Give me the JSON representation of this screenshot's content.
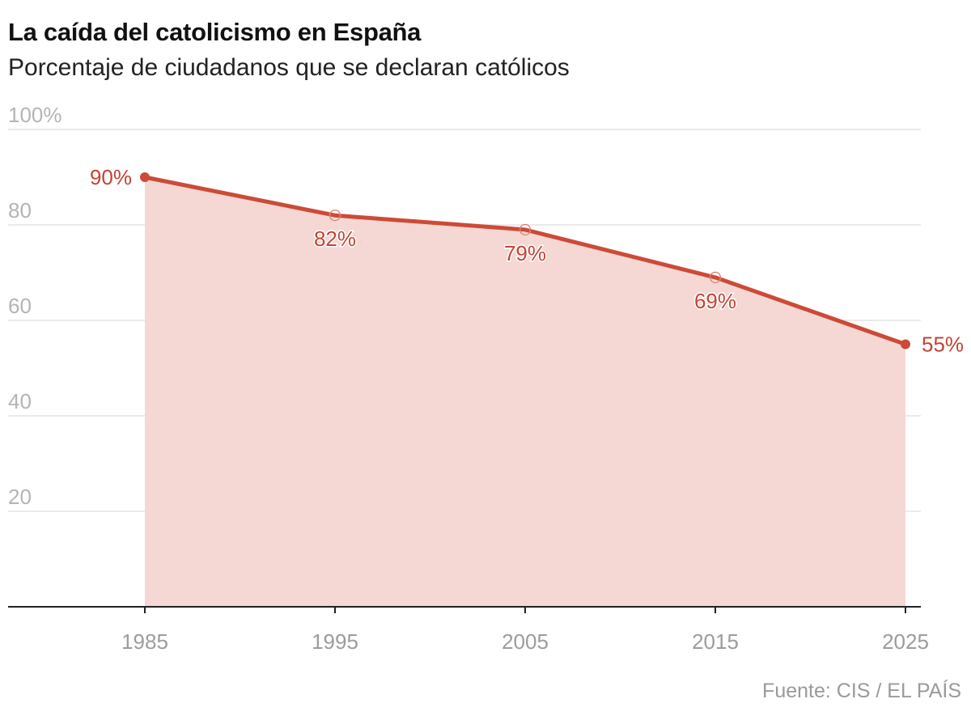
{
  "title": "La caída del catolicismo en España",
  "subtitle": "Porcentaje de ciudadanos que se declaran católicos",
  "source": "Fuente: CIS / EL PAÍS",
  "colors": {
    "line": "#cc4b37",
    "area": "#f5d7d3",
    "grid": "#e3e3e3",
    "axis": "#222222"
  },
  "chart_data": {
    "type": "area",
    "x": [
      "1985",
      "1995",
      "2005",
      "2015",
      "2025"
    ],
    "series": [
      {
        "values": [
          90,
          82,
          79,
          69,
          55
        ]
      }
    ],
    "data_labels": [
      "90%",
      "82%",
      "79%",
      "69%",
      "55%"
    ],
    "y_ticks": [
      "100%",
      "80",
      "60",
      "40",
      "20"
    ],
    "y_tick_values": [
      100,
      80,
      60,
      40,
      20
    ],
    "ylim": [
      0,
      100
    ],
    "grid": true,
    "xlabel": "",
    "ylabel": ""
  }
}
